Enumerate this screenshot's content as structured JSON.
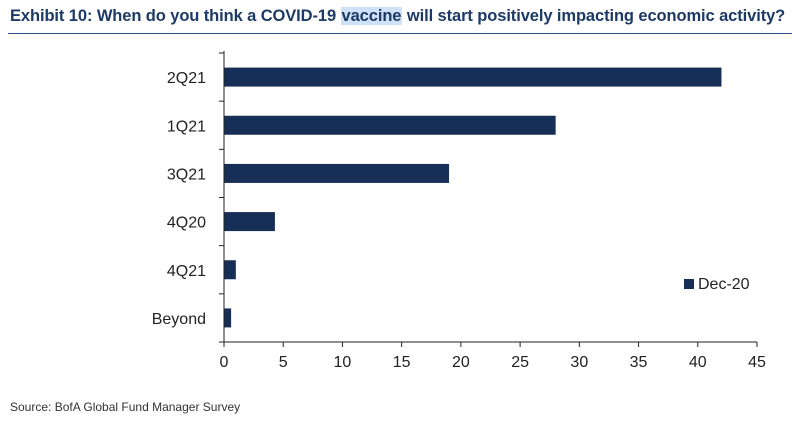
{
  "title": {
    "prefix": "Exhibit 10: When do you think a COVID-19 ",
    "highlight": "vaccine",
    "suffix": " will start positively impacting economic activity?"
  },
  "source": "Source: BofA Global Fund Manager Survey",
  "colors": {
    "bar": "#172f57",
    "title": "#1d3a66",
    "axis": "#222222",
    "highlight": "#cfe1f7"
  },
  "chart_data": {
    "type": "bar",
    "orientation": "horizontal",
    "categories": [
      "2Q21",
      "1Q21",
      "3Q21",
      "4Q20",
      "4Q21",
      "Beyond"
    ],
    "series": [
      {
        "name": "Dec-20",
        "values": [
          42,
          28,
          19,
          4.3,
          1,
          0.6
        ]
      }
    ],
    "xlim": [
      0,
      45
    ],
    "xticks": [
      0,
      5,
      10,
      15,
      20,
      25,
      30,
      35,
      40,
      45
    ],
    "grid": false,
    "legend": "right"
  }
}
